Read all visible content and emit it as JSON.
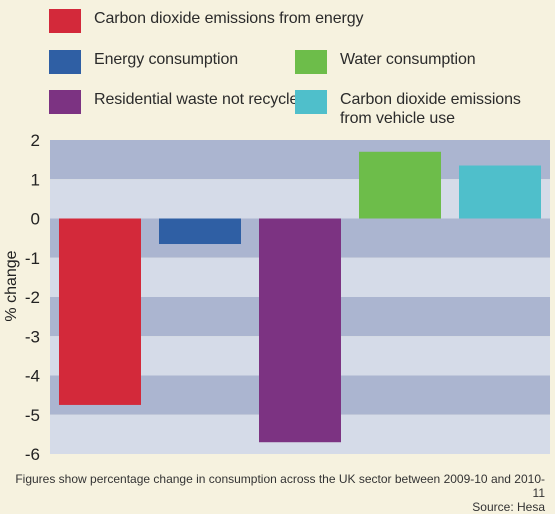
{
  "legend": [
    {
      "label": "Carbon dioxide emissions from energy",
      "color": "#d3293a"
    },
    {
      "label": "Energy consumption",
      "color": "#2f5fa4"
    },
    {
      "label": "Water consumption",
      "color": "#6dbd4a"
    },
    {
      "label": "Residential waste not recycled",
      "color": "#7c3382"
    },
    {
      "label": "Carbon dioxide emissions\nfrom vehicle use",
      "color": "#4fbfcb"
    }
  ],
  "chart_data": {
    "type": "bar",
    "categories": [
      "Carbon dioxide emissions from energy",
      "Energy consumption",
      "Residential waste not recycled",
      "Water consumption",
      "Carbon dioxide emissions from vehicle use"
    ],
    "values": [
      -4.75,
      -0.65,
      -5.7,
      1.7,
      1.35
    ],
    "colors": [
      "#d3293a",
      "#2f5fa4",
      "#7c3382",
      "#6dbd4a",
      "#4fbfcb"
    ],
    "ylabel": "% change",
    "ylim": [
      -6,
      2
    ],
    "yticks": [
      "2",
      "1",
      "0",
      "-1",
      "-2",
      "-3",
      "-4",
      "-5",
      "-6"
    ],
    "background_bands": {
      "light": "#d5dbe8",
      "dark": "#abb5d0"
    }
  },
  "footnote": {
    "caption": "Figures show percentage change in consumption across the UK sector between 2009-10 and 2010-11",
    "source": "Source: Hesa"
  }
}
